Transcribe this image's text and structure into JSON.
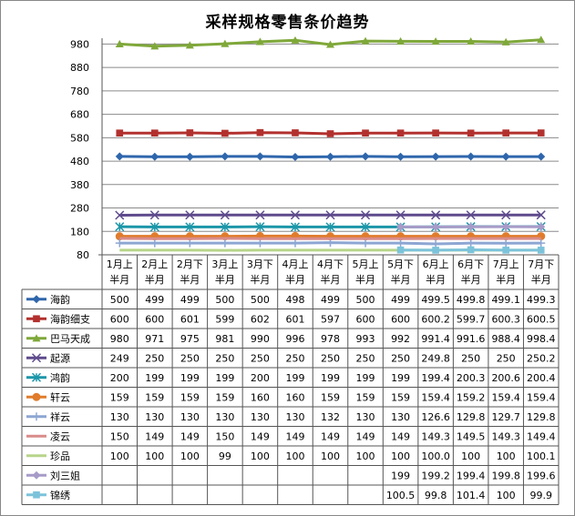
{
  "chart_data": {
    "type": "line",
    "title": "采样规格零售条价趋势",
    "xlabel": "",
    "ylabel": "",
    "ylim": [
      80,
      1005
    ],
    "yticks": [
      80,
      180,
      280,
      380,
      480,
      580,
      680,
      780,
      880,
      980
    ],
    "grid": true,
    "legend": "data-table",
    "categories": [
      [
        "1月上",
        "半月"
      ],
      [
        "2月上",
        "半月"
      ],
      [
        "2月下",
        "半月"
      ],
      [
        "3月上",
        "半月"
      ],
      [
        "3月下",
        "半月"
      ],
      [
        "4月上",
        "半月"
      ],
      [
        "4月下",
        "半月"
      ],
      [
        "5月上",
        "半月"
      ],
      [
        "5月下",
        "半月"
      ],
      [
        "6月上",
        "半月"
      ],
      [
        "6月下",
        "半月"
      ],
      [
        "7月上",
        "半月"
      ],
      [
        "7月下",
        "半月"
      ]
    ],
    "series": [
      {
        "name": "海韵",
        "color": "#2E66AC",
        "marker": "diamond",
        "values": [
          "500",
          "499",
          "499",
          "500",
          "500",
          "498",
          "499",
          "500",
          "499",
          "499.5",
          "499.8",
          "499.1",
          "499.3"
        ]
      },
      {
        "name": "海韵细支",
        "color": "#B2312E",
        "marker": "square",
        "values": [
          "600",
          "600",
          "601",
          "599",
          "602",
          "601",
          "597",
          "600",
          "600",
          "600.2",
          "599.7",
          "600.3",
          "600.5"
        ]
      },
      {
        "name": "巴马天成",
        "color": "#7FA83A",
        "marker": "triangle",
        "values": [
          "980",
          "971",
          "975",
          "981",
          "990",
          "996",
          "978",
          "993",
          "992",
          "991.4",
          "991.6",
          "988.4",
          "998.4"
        ]
      },
      {
        "name": "起源",
        "color": "#5E4A8C",
        "marker": "x",
        "values": [
          "249",
          "250",
          "250",
          "250",
          "250",
          "250",
          "250",
          "250",
          "250",
          "249.8",
          "250",
          "250",
          "250.2"
        ]
      },
      {
        "name": "鸿韵",
        "color": "#1B96A8",
        "marker": "asterisk",
        "values": [
          "200",
          "199",
          "199",
          "199",
          "200",
          "199",
          "199",
          "199",
          "199",
          "199.4",
          "200.3",
          "200.6",
          "200.4"
        ]
      },
      {
        "name": "轩云",
        "color": "#E07C2C",
        "marker": "circle",
        "values": [
          "159",
          "159",
          "159",
          "159",
          "160",
          "160",
          "159",
          "159",
          "159",
          "159.4",
          "159.2",
          "159.4",
          "159.4"
        ]
      },
      {
        "name": "祥云",
        "color": "#8DA6D3",
        "marker": "plus",
        "values": [
          "130",
          "130",
          "130",
          "130",
          "130",
          "130",
          "132",
          "130",
          "130",
          "126.6",
          "129.8",
          "129.7",
          "129.8"
        ]
      },
      {
        "name": "凌云",
        "color": "#D98C8A",
        "marker": "none",
        "values": [
          "150",
          "149",
          "149",
          "150",
          "149",
          "149",
          "149",
          "149",
          "149",
          "149.3",
          "149.5",
          "149.3",
          "149.4"
        ]
      },
      {
        "name": "珍品",
        "color": "#B7D58A",
        "marker": "none",
        "values": [
          "100",
          "100",
          "100",
          "99",
          "100",
          "100",
          "100",
          "100",
          "100",
          "100.0",
          "100",
          "100",
          "100.1"
        ]
      },
      {
        "name": "刘三姐",
        "color": "#A79BC8",
        "marker": "diamond",
        "values": [
          "",
          "",
          "",
          "",
          "",
          "",
          "",
          "",
          "199",
          "199.2",
          "199.4",
          "199.8",
          "199.6"
        ]
      },
      {
        "name": "锦绣",
        "color": "#7CC3DA",
        "marker": "square",
        "values": [
          "",
          "",
          "",
          "",
          "",
          "",
          "",
          "",
          "100.5",
          "99.8",
          "101.4",
          "100",
          "99.9"
        ]
      }
    ]
  }
}
